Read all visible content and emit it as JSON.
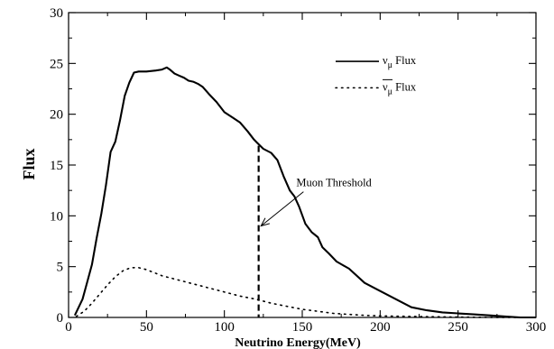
{
  "chart_data": {
    "type": "line",
    "xlabel": "Neutrino Energy(MeV)",
    "ylabel": "Flux",
    "xlim": [
      0,
      300
    ],
    "ylim": [
      0,
      30
    ],
    "xticks": [
      0,
      50,
      100,
      150,
      200,
      250,
      300
    ],
    "yticks": [
      0,
      5,
      10,
      15,
      20,
      25,
      30
    ],
    "grid": false,
    "legend_position": "top-right",
    "series": [
      {
        "name_base": "ν",
        "name_sub": "μ",
        "name_suffix": " Flux",
        "style": "solid",
        "x": [
          4,
          9,
          12,
          15,
          18,
          21,
          24,
          27,
          30,
          33,
          36,
          39,
          42,
          45,
          50,
          56,
          60,
          63,
          65,
          68,
          71,
          74,
          77,
          80,
          83,
          86,
          90,
          95,
          100,
          105,
          110,
          115,
          119,
          121,
          125,
          130,
          134,
          138,
          142,
          145,
          148,
          152,
          156,
          160,
          163,
          167,
          172,
          180,
          190,
          200,
          210,
          220,
          230,
          240,
          250,
          260,
          270,
          280,
          290,
          300
        ],
        "y": [
          0.2,
          1.8,
          3.5,
          5.2,
          7.8,
          10.2,
          13.0,
          16.3,
          17.3,
          19.4,
          21.8,
          23.1,
          24.1,
          24.2,
          24.2,
          24.3,
          24.4,
          24.6,
          24.4,
          24.0,
          23.8,
          23.6,
          23.3,
          23.2,
          23.0,
          22.7,
          22.0,
          21.2,
          20.2,
          19.7,
          19.2,
          18.3,
          17.5,
          17.2,
          16.6,
          16.2,
          15.5,
          13.9,
          12.5,
          11.9,
          10.9,
          9.2,
          8.4,
          7.9,
          6.9,
          6.3,
          5.5,
          4.8,
          3.4,
          2.6,
          1.8,
          1.0,
          0.7,
          0.5,
          0.4,
          0.3,
          0.2,
          0.1,
          0.0,
          0.0
        ]
      },
      {
        "name_base": "ν",
        "name_sub": "μ",
        "name_suffix": " Flux",
        "bar": true,
        "style": "dotted",
        "x": [
          5,
          10,
          15,
          20,
          25,
          30,
          35,
          40,
          45,
          50,
          55,
          60,
          70,
          80,
          90,
          100,
          110,
          120,
          130,
          140,
          150,
          160,
          170,
          180,
          190,
          200,
          220,
          240,
          260,
          280,
          300
        ],
        "y": [
          0.1,
          0.6,
          1.4,
          2.3,
          3.2,
          4.0,
          4.6,
          4.9,
          4.9,
          4.7,
          4.4,
          4.1,
          3.7,
          3.3,
          2.9,
          2.5,
          2.1,
          1.8,
          1.4,
          1.1,
          0.8,
          0.6,
          0.4,
          0.3,
          0.2,
          0.15,
          0.1,
          0.05,
          0.02,
          0.0,
          0.0
        ]
      }
    ],
    "threshold": {
      "x": 122,
      "y_top": 16.9,
      "label": "Muon Threshold",
      "arrow_to": [
        123.5,
        9.0
      ],
      "label_at": [
        145,
        12.9
      ]
    }
  }
}
